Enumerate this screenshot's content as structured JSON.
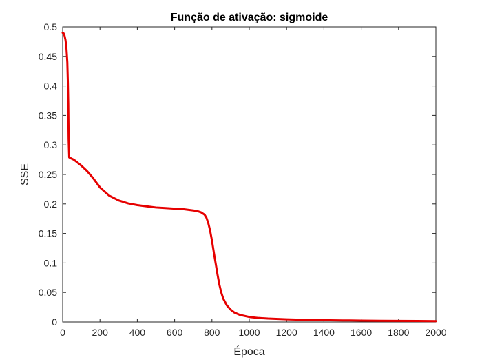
{
  "chart_data": {
    "type": "line",
    "title": "Função de ativação: sigmoide",
    "xlabel": "Época",
    "ylabel": "SSE",
    "xlim": [
      0,
      2000
    ],
    "ylim": [
      0,
      0.5
    ],
    "xticks": [
      0,
      200,
      400,
      600,
      800,
      1000,
      1200,
      1400,
      1600,
      1800,
      2000
    ],
    "yticks": [
      0,
      0.05,
      0.1,
      0.15,
      0.2,
      0.25,
      0.3,
      0.35,
      0.4,
      0.45,
      0.5
    ],
    "xtick_labels": [
      "0",
      "200",
      "400",
      "600",
      "800",
      "1000",
      "1200",
      "1400",
      "1600",
      "1800",
      "2000"
    ],
    "ytick_labels": [
      "0",
      "0.05",
      "0.1",
      "0.15",
      "0.2",
      "0.25",
      "0.3",
      "0.35",
      "0.4",
      "0.45",
      "0.5"
    ],
    "grid": false,
    "colors": {
      "series": "#e60000",
      "axes": "#262626"
    },
    "series": [
      {
        "x": [
          0,
          5,
          10,
          15,
          20,
          25,
          28,
          30,
          32,
          35,
          40,
          60,
          80,
          100,
          130,
          160,
          200,
          250,
          300,
          350,
          400,
          450,
          500,
          550,
          600,
          650,
          700,
          720,
          740,
          760,
          770,
          780,
          790,
          800,
          810,
          820,
          830,
          840,
          850,
          860,
          880,
          900,
          920,
          950,
          1000,
          1050,
          1100,
          1200,
          1300,
          1400,
          1500,
          1600,
          1700,
          1800,
          1900,
          2000
        ],
        "y": [
          0.49,
          0.489,
          0.485,
          0.478,
          0.465,
          0.44,
          0.405,
          0.37,
          0.31,
          0.279,
          0.278,
          0.275,
          0.27,
          0.265,
          0.256,
          0.245,
          0.228,
          0.214,
          0.206,
          0.201,
          0.198,
          0.196,
          0.194,
          0.193,
          0.192,
          0.191,
          0.189,
          0.188,
          0.186,
          0.182,
          0.177,
          0.168,
          0.155,
          0.138,
          0.118,
          0.099,
          0.08,
          0.063,
          0.05,
          0.04,
          0.028,
          0.021,
          0.016,
          0.012,
          0.0085,
          0.0068,
          0.0058,
          0.0045,
          0.0037,
          0.0031,
          0.0027,
          0.0024,
          0.0021,
          0.0019,
          0.0017,
          0.0015
        ]
      }
    ]
  }
}
